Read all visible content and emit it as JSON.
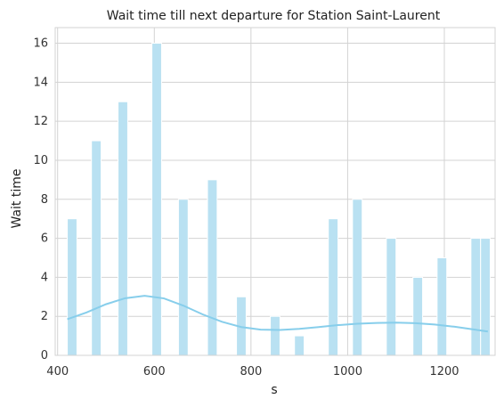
{
  "chart_data": {
    "type": "bar",
    "title": "Wait time till next departure for Station Saint-Laurent",
    "xlabel": "s",
    "ylabel": "Wait time",
    "xlim": [
      395,
      1305
    ],
    "ylim": [
      0,
      16.8
    ],
    "x_ticks": [
      400,
      600,
      800,
      1000,
      1200
    ],
    "y_ticks": [
      0,
      2,
      4,
      6,
      8,
      10,
      12,
      14,
      16
    ],
    "grid": true,
    "bar_color": "#b9e1f2",
    "bar_edge_color": "#ffffff",
    "line_color": "#87ceeb",
    "bars": [
      {
        "start": 420,
        "end": 440,
        "value": 7
      },
      {
        "start": 470,
        "end": 490,
        "value": 11
      },
      {
        "start": 525,
        "end": 545,
        "value": 13
      },
      {
        "start": 595,
        "end": 615,
        "value": 16
      },
      {
        "start": 650,
        "end": 670,
        "value": 8
      },
      {
        "start": 710,
        "end": 730,
        "value": 9
      },
      {
        "start": 770,
        "end": 790,
        "value": 3
      },
      {
        "start": 840,
        "end": 860,
        "value": 2
      },
      {
        "start": 890,
        "end": 910,
        "value": 1
      },
      {
        "start": 960,
        "end": 980,
        "value": 7
      },
      {
        "start": 1010,
        "end": 1030,
        "value": 8
      },
      {
        "start": 1080,
        "end": 1100,
        "value": 6
      },
      {
        "start": 1135,
        "end": 1155,
        "value": 4
      },
      {
        "start": 1185,
        "end": 1205,
        "value": 5
      },
      {
        "start": 1255,
        "end": 1275,
        "value": 6
      },
      {
        "start": 1275,
        "end": 1295,
        "value": 6
      }
    ],
    "kde_line": [
      {
        "x": 420,
        "y": 1.85
      },
      {
        "x": 460,
        "y": 2.2
      },
      {
        "x": 500,
        "y": 2.62
      },
      {
        "x": 540,
        "y": 2.93
      },
      {
        "x": 580,
        "y": 3.05
      },
      {
        "x": 620,
        "y": 2.92
      },
      {
        "x": 660,
        "y": 2.55
      },
      {
        "x": 700,
        "y": 2.1
      },
      {
        "x": 740,
        "y": 1.72
      },
      {
        "x": 780,
        "y": 1.45
      },
      {
        "x": 820,
        "y": 1.32
      },
      {
        "x": 860,
        "y": 1.3
      },
      {
        "x": 900,
        "y": 1.36
      },
      {
        "x": 940,
        "y": 1.45
      },
      {
        "x": 980,
        "y": 1.55
      },
      {
        "x": 1020,
        "y": 1.62
      },
      {
        "x": 1060,
        "y": 1.66
      },
      {
        "x": 1100,
        "y": 1.68
      },
      {
        "x": 1140,
        "y": 1.65
      },
      {
        "x": 1180,
        "y": 1.58
      },
      {
        "x": 1220,
        "y": 1.47
      },
      {
        "x": 1260,
        "y": 1.33
      },
      {
        "x": 1290,
        "y": 1.22
      }
    ]
  }
}
